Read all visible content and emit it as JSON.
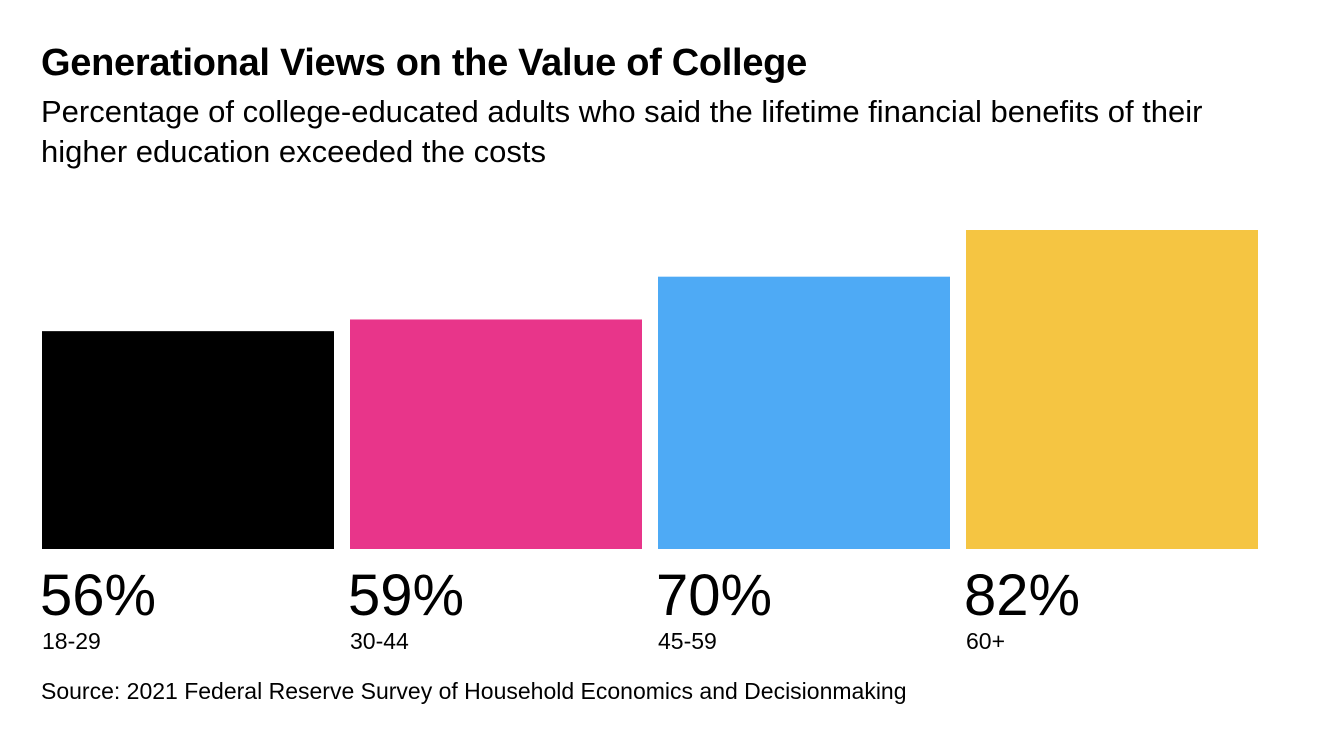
{
  "title": "Generational Views on the Value of College",
  "subtitle": "Percentage of college-educated adults who said the lifetime financial benefits of their higher education exceeded the costs",
  "source": "Source: 2021 Federal Reserve Survey of Household Economics and Decisionmaking",
  "chart_data": {
    "type": "bar",
    "title": "Generational Views on the Value of College",
    "subtitle": "Percentage of college-educated adults who said the lifetime financial benefits of their higher education exceeded the costs",
    "xlabel": "",
    "ylabel": "",
    "categories": [
      "18-29",
      "30-44",
      "45-59",
      "60+"
    ],
    "values": [
      56,
      59,
      70,
      82
    ],
    "value_labels": [
      "56%",
      "59%",
      "70%",
      "82%"
    ],
    "colors": [
      "#000000",
      "#e8358a",
      "#4eaaf5",
      "#f5c542"
    ],
    "ylim": [
      0,
      82
    ],
    "grid": false,
    "legend": "none"
  }
}
